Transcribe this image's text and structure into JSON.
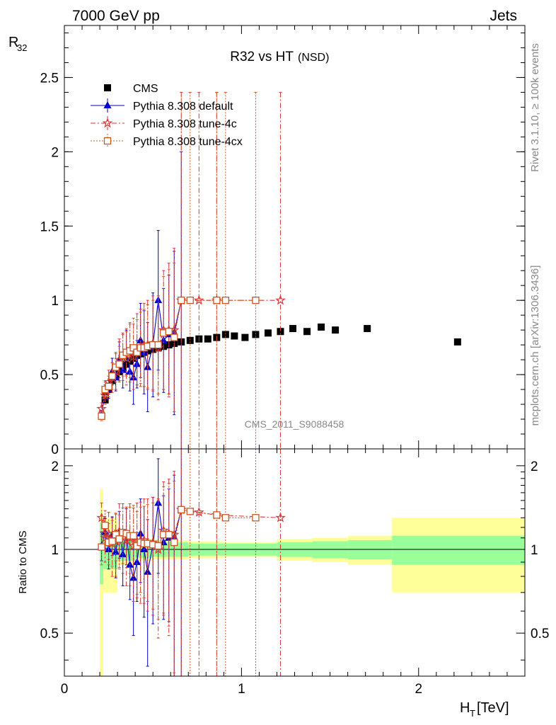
{
  "header": {
    "left": "7000 GeV pp",
    "right": "Jets"
  },
  "side_labels": {
    "rivet": "Rivet 3.1.10, ≥ 100k events",
    "mcplots": "mcplots.cern.ch [arXiv:1306.3436]"
  },
  "colors": {
    "cms": "#000000",
    "default": "#0000cc",
    "tune4c": "#dd3333",
    "tune4cx": "#cc5522",
    "band_inner": "#99ff99",
    "band_outer": "#ffff99"
  },
  "chart_data": [
    {
      "type": "scatter",
      "title": "R32 vs HT",
      "title_suffix": "(NSD)",
      "ylabel": "R32",
      "watermark": "CMS_2011_S9088458",
      "xlim": [
        0,
        2.6
      ],
      "ylim": [
        0,
        2.85
      ],
      "yticks": [
        "0",
        "0.5",
        "1",
        "1.5",
        "2",
        "2.5"
      ],
      "legend_position": "top-left",
      "series": [
        {
          "name": "CMS",
          "marker": "square",
          "color": "#000000",
          "x": [
            0.21,
            0.23,
            0.25,
            0.27,
            0.29,
            0.31,
            0.33,
            0.35,
            0.37,
            0.39,
            0.41,
            0.43,
            0.45,
            0.47,
            0.5,
            0.53,
            0.56,
            0.59,
            0.62,
            0.66,
            0.71,
            0.76,
            0.81,
            0.86,
            0.91,
            0.96,
            1.02,
            1.08,
            1.15,
            1.22,
            1.29,
            1.37,
            1.45,
            1.53,
            1.71,
            2.22
          ],
          "y": [
            0.22,
            0.33,
            0.4,
            0.46,
            0.49,
            0.52,
            0.55,
            0.57,
            0.59,
            0.61,
            0.63,
            0.64,
            0.65,
            0.66,
            0.67,
            0.68,
            0.69,
            0.7,
            0.71,
            0.72,
            0.73,
            0.74,
            0.74,
            0.75,
            0.77,
            0.76,
            0.75,
            0.77,
            0.78,
            0.79,
            0.81,
            0.79,
            0.82,
            0.8,
            0.81,
            0.72
          ]
        },
        {
          "name": "Pythia 8.308 default",
          "marker": "triangle",
          "color": "#0000cc",
          "line": "solid",
          "x": [
            0.21,
            0.23,
            0.25,
            0.27,
            0.29,
            0.31,
            0.33,
            0.35,
            0.37,
            0.39,
            0.41,
            0.43,
            0.45,
            0.47,
            0.5,
            0.53,
            0.56,
            0.59,
            0.62,
            0.66
          ],
          "y": [
            0.23,
            0.38,
            0.4,
            0.52,
            0.48,
            0.6,
            0.53,
            0.65,
            0.52,
            0.48,
            0.57,
            0.73,
            0.65,
            0.55,
            0.7,
            1.0,
            0.73,
            0.77,
            0.78,
            1.0
          ],
          "yerr": [
            0.03,
            0.05,
            0.06,
            0.09,
            0.09,
            0.12,
            0.12,
            0.15,
            0.13,
            0.18,
            0.16,
            0.25,
            0.28,
            0.3,
            0.35,
            0.47,
            0.35,
            0.4,
            0.55,
            1.0
          ]
        },
        {
          "name": "Pythia 8.308 tune-4c",
          "marker": "star",
          "color": "#dd3333",
          "line": "dashdot",
          "x": [
            0.21,
            0.23,
            0.25,
            0.27,
            0.29,
            0.31,
            0.33,
            0.35,
            0.37,
            0.39,
            0.41,
            0.43,
            0.45,
            0.47,
            0.5,
            0.53,
            0.56,
            0.59,
            0.62,
            0.66,
            0.76,
            0.86,
            1.22
          ],
          "y": [
            0.27,
            0.36,
            0.45,
            0.48,
            0.52,
            0.6,
            0.62,
            0.61,
            0.65,
            0.62,
            0.67,
            0.68,
            0.7,
            0.7,
            0.71,
            0.68,
            0.8,
            0.8,
            0.8,
            1.0,
            1.0,
            1.0,
            1.0
          ],
          "yerr": [
            0.04,
            0.06,
            0.08,
            0.1,
            0.12,
            0.14,
            0.16,
            0.18,
            0.2,
            0.22,
            0.24,
            0.26,
            0.28,
            0.3,
            0.32,
            0.35,
            0.4,
            0.45,
            0.55,
            1.4,
            1.4,
            1.4,
            1.4
          ]
        },
        {
          "name": "Pythia 8.308 tune-4cx",
          "marker": "open-square",
          "color": "#cc5522",
          "line": "dotted",
          "x": [
            0.21,
            0.23,
            0.25,
            0.27,
            0.29,
            0.31,
            0.33,
            0.35,
            0.37,
            0.39,
            0.41,
            0.43,
            0.45,
            0.47,
            0.5,
            0.53,
            0.56,
            0.59,
            0.62,
            0.66,
            0.71,
            0.86,
            0.91,
            1.08
          ],
          "y": [
            0.22,
            0.4,
            0.42,
            0.49,
            0.55,
            0.57,
            0.63,
            0.65,
            0.66,
            0.68,
            0.65,
            0.68,
            0.68,
            0.69,
            0.7,
            0.7,
            0.78,
            0.79,
            0.75,
            1.0,
            1.0,
            1.0,
            1.0,
            1.0
          ],
          "yerr": [
            0.03,
            0.05,
            0.07,
            0.09,
            0.1,
            0.12,
            0.14,
            0.16,
            0.18,
            0.2,
            0.22,
            0.24,
            0.26,
            0.28,
            0.3,
            0.33,
            0.38,
            0.42,
            0.5,
            1.4,
            1.4,
            1.4,
            1.4,
            1.4
          ]
        }
      ]
    },
    {
      "type": "scatter",
      "ylabel": "Ratio to CMS",
      "xlabel": "HT [TeV]",
      "xlim": [
        0,
        2.6
      ],
      "ylim": [
        0.35,
        2.3
      ],
      "xticks": [
        "0",
        "1",
        "2"
      ],
      "yticks": [
        "0.5",
        "1",
        "2"
      ],
      "reference_line": 1,
      "bands": {
        "x_edges": [
          0.2,
          0.22,
          0.3,
          0.4,
          0.5,
          0.7,
          0.9,
          1.1,
          1.2,
          1.4,
          1.6,
          1.85,
          2.6
        ],
        "inner": [
          0.25,
          0.15,
          0.09,
          0.07,
          0.06,
          0.05,
          0.05,
          0.05,
          0.06,
          0.07,
          0.08,
          0.12
        ],
        "outer": [
          0.65,
          0.3,
          0.12,
          0.09,
          0.08,
          0.07,
          0.06,
          0.06,
          0.09,
          0.1,
          0.12,
          0.3
        ]
      },
      "series": [
        {
          "name": "Pythia 8.308 default",
          "marker": "triangle",
          "color": "#0000cc",
          "line": "solid",
          "x": [
            0.21,
            0.23,
            0.25,
            0.27,
            0.29,
            0.31,
            0.33,
            0.35,
            0.37,
            0.39,
            0.41,
            0.43,
            0.45,
            0.47,
            0.5,
            0.53,
            0.56,
            0.59,
            0.62,
            0.66
          ],
          "y": [
            1.03,
            1.15,
            1.0,
            1.13,
            0.98,
            1.15,
            0.96,
            1.14,
            0.88,
            0.79,
            0.9,
            1.14,
            1.0,
            0.83,
            1.04,
            1.47,
            1.06,
            1.1,
            1.1,
            1.39
          ],
          "yerr": [
            0.12,
            0.14,
            0.15,
            0.18,
            0.19,
            0.22,
            0.22,
            0.26,
            0.22,
            0.3,
            0.25,
            0.38,
            0.43,
            0.45,
            0.5,
            0.65,
            0.5,
            0.55,
            0.75,
            1.2
          ]
        },
        {
          "name": "Pythia 8.308 tune-4c",
          "marker": "star",
          "color": "#dd3333",
          "line": "dashdot",
          "x": [
            0.21,
            0.23,
            0.25,
            0.27,
            0.29,
            0.31,
            0.33,
            0.35,
            0.37,
            0.39,
            0.41,
            0.43,
            0.45,
            0.47,
            0.5,
            0.53,
            0.56,
            0.59,
            0.62,
            0.66,
            0.76,
            0.86,
            1.22
          ],
          "y": [
            1.3,
            1.1,
            1.14,
            1.05,
            1.07,
            1.16,
            1.14,
            1.08,
            1.1,
            1.03,
            1.07,
            1.06,
            1.08,
            1.06,
            1.06,
            1.0,
            1.17,
            1.14,
            1.13,
            1.39,
            1.36,
            1.33,
            1.3
          ],
          "yerr": [
            0.17,
            0.2,
            0.22,
            0.25,
            0.27,
            0.3,
            0.32,
            0.34,
            0.36,
            0.38,
            0.4,
            0.42,
            0.44,
            0.46,
            0.48,
            0.52,
            0.58,
            0.65,
            0.78,
            1.8,
            1.8,
            1.8,
            1.8
          ]
        },
        {
          "name": "Pythia 8.308 tune-4cx",
          "marker": "open-square",
          "color": "#cc5522",
          "line": "dotted",
          "x": [
            0.21,
            0.23,
            0.25,
            0.27,
            0.29,
            0.31,
            0.33,
            0.35,
            0.37,
            0.39,
            0.41,
            0.43,
            0.45,
            0.47,
            0.5,
            0.53,
            0.56,
            0.59,
            0.62,
            0.66,
            0.71,
            0.86,
            0.91,
            1.08
          ],
          "y": [
            1.02,
            1.22,
            1.06,
            1.07,
            1.13,
            1.09,
            1.15,
            1.14,
            1.12,
            1.12,
            1.03,
            1.06,
            1.05,
            1.05,
            1.04,
            1.03,
            1.13,
            1.13,
            1.06,
            1.39,
            1.37,
            1.33,
            1.3,
            1.3
          ],
          "yerr": [
            0.14,
            0.16,
            0.18,
            0.2,
            0.22,
            0.24,
            0.26,
            0.28,
            0.3,
            0.32,
            0.34,
            0.36,
            0.38,
            0.4,
            0.43,
            0.47,
            0.55,
            0.6,
            0.7,
            1.8,
            1.8,
            1.8,
            1.8,
            1.8
          ]
        }
      ]
    }
  ]
}
